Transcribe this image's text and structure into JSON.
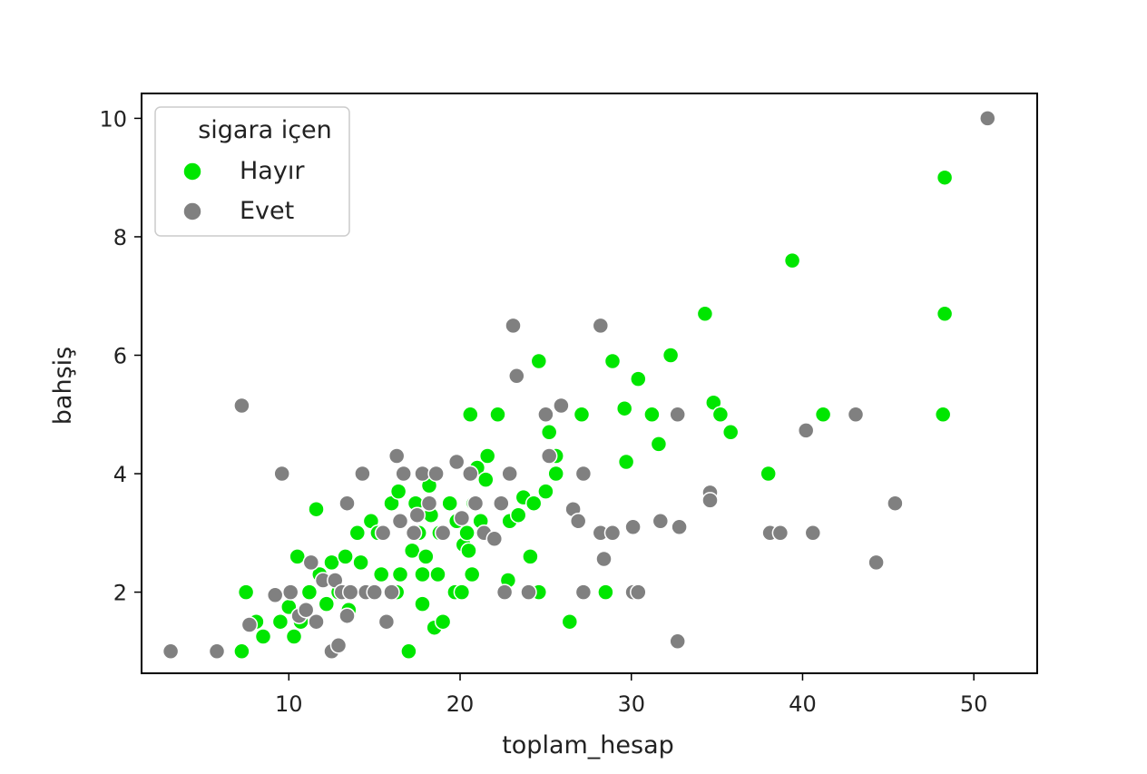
{
  "chart_data": {
    "type": "scatter",
    "title": "",
    "xlabel": "toplam_hesap",
    "ylabel": "bahşiş",
    "xlim": [
      1.4,
      53.7
    ],
    "ylim": [
      0.63,
      10.42
    ],
    "xticks": [
      10,
      20,
      30,
      40,
      50
    ],
    "yticks": [
      2,
      4,
      6,
      8,
      10
    ],
    "xtick_labels": [
      "10",
      "20",
      "30",
      "40",
      "50"
    ],
    "ytick_labels": [
      "2",
      "4",
      "6",
      "8",
      "10"
    ],
    "grid": false,
    "legend": {
      "title": "sigara içen",
      "placement": "top-left",
      "entries": [
        "Hayır",
        "Evet"
      ]
    },
    "series": [
      {
        "name": "Hayır",
        "color": "#00e600",
        "points": [
          [
            7.25,
            1.0
          ],
          [
            7.5,
            2.0
          ],
          [
            8.1,
            1.5
          ],
          [
            8.5,
            1.25
          ],
          [
            9.5,
            1.5
          ],
          [
            10.0,
            1.75
          ],
          [
            10.3,
            1.25
          ],
          [
            10.5,
            2.6
          ],
          [
            10.7,
            1.5
          ],
          [
            11.2,
            2.0
          ],
          [
            11.6,
            3.4
          ],
          [
            11.8,
            2.3
          ],
          [
            12.2,
            1.8
          ],
          [
            12.5,
            2.5
          ],
          [
            12.9,
            2.0
          ],
          [
            13.3,
            2.6
          ],
          [
            13.5,
            1.7
          ],
          [
            14.0,
            3.0
          ],
          [
            14.2,
            2.5
          ],
          [
            14.8,
            2.0
          ],
          [
            14.8,
            3.2
          ],
          [
            15.2,
            3.0
          ],
          [
            15.4,
            2.3
          ],
          [
            16.0,
            3.5
          ],
          [
            16.3,
            2.0
          ],
          [
            16.4,
            3.7
          ],
          [
            16.5,
            2.3
          ],
          [
            17.0,
            1.0
          ],
          [
            17.2,
            2.7
          ],
          [
            17.4,
            3.5
          ],
          [
            17.6,
            3.0
          ],
          [
            17.8,
            2.3
          ],
          [
            17.8,
            1.8
          ],
          [
            17.9,
            4.0
          ],
          [
            18.0,
            2.6
          ],
          [
            18.2,
            3.8
          ],
          [
            18.3,
            3.3
          ],
          [
            18.5,
            1.4
          ],
          [
            18.7,
            2.3
          ],
          [
            18.8,
            3.0
          ],
          [
            19.0,
            1.5
          ],
          [
            19.4,
            3.5
          ],
          [
            19.7,
            2.0
          ],
          [
            19.8,
            3.2
          ],
          [
            20.1,
            2.0
          ],
          [
            20.2,
            2.8
          ],
          [
            20.4,
            3.0
          ],
          [
            20.5,
            2.7
          ],
          [
            20.6,
            5.0
          ],
          [
            20.7,
            2.3
          ],
          [
            20.8,
            3.5
          ],
          [
            21.0,
            4.1
          ],
          [
            21.2,
            3.2
          ],
          [
            21.5,
            3.9
          ],
          [
            21.6,
            4.3
          ],
          [
            22.2,
            5.0
          ],
          [
            22.8,
            2.2
          ],
          [
            22.9,
            3.2
          ],
          [
            23.4,
            3.3
          ],
          [
            23.7,
            3.6
          ],
          [
            24.0,
            2.0
          ],
          [
            24.1,
            2.6
          ],
          [
            24.3,
            3.5
          ],
          [
            24.6,
            2.0
          ],
          [
            24.6,
            5.9
          ],
          [
            25.0,
            3.7
          ],
          [
            25.2,
            4.7
          ],
          [
            25.6,
            4.0
          ],
          [
            25.6,
            4.3
          ],
          [
            26.4,
            1.5
          ],
          [
            27.1,
            5.0
          ],
          [
            28.5,
            2.0
          ],
          [
            28.9,
            5.9
          ],
          [
            29.6,
            5.1
          ],
          [
            29.7,
            4.2
          ],
          [
            30.4,
            5.6
          ],
          [
            31.2,
            5.0
          ],
          [
            31.6,
            4.5
          ],
          [
            32.3,
            6.0
          ],
          [
            34.3,
            6.7
          ],
          [
            34.8,
            5.2
          ],
          [
            35.2,
            5.0
          ],
          [
            35.8,
            4.7
          ],
          [
            38.0,
            4.0
          ],
          [
            39.4,
            7.6
          ],
          [
            41.2,
            5.0
          ],
          [
            48.2,
            5.0
          ],
          [
            48.3,
            6.7
          ],
          [
            48.3,
            9.0
          ]
        ]
      },
      {
        "name": "Evet",
        "color": "#808080",
        "points": [
          [
            3.1,
            1.0
          ],
          [
            5.8,
            1.0
          ],
          [
            7.25,
            5.15
          ],
          [
            7.7,
            1.45
          ],
          [
            9.2,
            1.95
          ],
          [
            9.6,
            4.0
          ],
          [
            10.1,
            2.0
          ],
          [
            10.6,
            1.6
          ],
          [
            11.0,
            1.7
          ],
          [
            11.3,
            2.5
          ],
          [
            11.6,
            1.5
          ],
          [
            12.0,
            2.2
          ],
          [
            12.5,
            1.0
          ],
          [
            12.7,
            2.2
          ],
          [
            12.9,
            1.1
          ],
          [
            13.1,
            2.0
          ],
          [
            13.4,
            1.6
          ],
          [
            13.4,
            3.5
          ],
          [
            13.6,
            2.0
          ],
          [
            14.3,
            4.0
          ],
          [
            14.5,
            2.0
          ],
          [
            15.0,
            2.0
          ],
          [
            15.5,
            3.0
          ],
          [
            15.7,
            1.5
          ],
          [
            16.0,
            2.0
          ],
          [
            16.3,
            4.3
          ],
          [
            16.5,
            3.2
          ],
          [
            16.7,
            4.0
          ],
          [
            17.3,
            3.0
          ],
          [
            17.5,
            3.3
          ],
          [
            17.8,
            4.0
          ],
          [
            18.2,
            3.5
          ],
          [
            18.6,
            4.0
          ],
          [
            19.0,
            3.0
          ],
          [
            19.8,
            4.2
          ],
          [
            20.1,
            3.25
          ],
          [
            20.6,
            4.0
          ],
          [
            20.9,
            3.5
          ],
          [
            21.4,
            3.0
          ],
          [
            22.0,
            2.9
          ],
          [
            22.4,
            3.5
          ],
          [
            22.6,
            2.0
          ],
          [
            22.9,
            4.0
          ],
          [
            23.1,
            6.5
          ],
          [
            23.3,
            5.65
          ],
          [
            24.0,
            2.0
          ],
          [
            25.0,
            5.0
          ],
          [
            25.2,
            4.3
          ],
          [
            25.9,
            5.15
          ],
          [
            26.6,
            3.4
          ],
          [
            26.9,
            3.2
          ],
          [
            27.2,
            4.0
          ],
          [
            27.2,
            2.0
          ],
          [
            28.2,
            6.5
          ],
          [
            28.2,
            3.0
          ],
          [
            28.4,
            2.56
          ],
          [
            28.9,
            3.0
          ],
          [
            30.1,
            3.1
          ],
          [
            30.1,
            2.0
          ],
          [
            30.4,
            2.0
          ],
          [
            31.7,
            3.2
          ],
          [
            32.7,
            1.17
          ],
          [
            32.8,
            3.1
          ],
          [
            32.7,
            5.0
          ],
          [
            34.6,
            3.68
          ],
          [
            34.6,
            3.55
          ],
          [
            38.1,
            3.0
          ],
          [
            38.7,
            3.0
          ],
          [
            40.2,
            4.73
          ],
          [
            40.6,
            3.0
          ],
          [
            43.1,
            5.0
          ],
          [
            44.3,
            2.5
          ],
          [
            45.4,
            3.5
          ],
          [
            50.8,
            10.0
          ]
        ]
      }
    ]
  }
}
